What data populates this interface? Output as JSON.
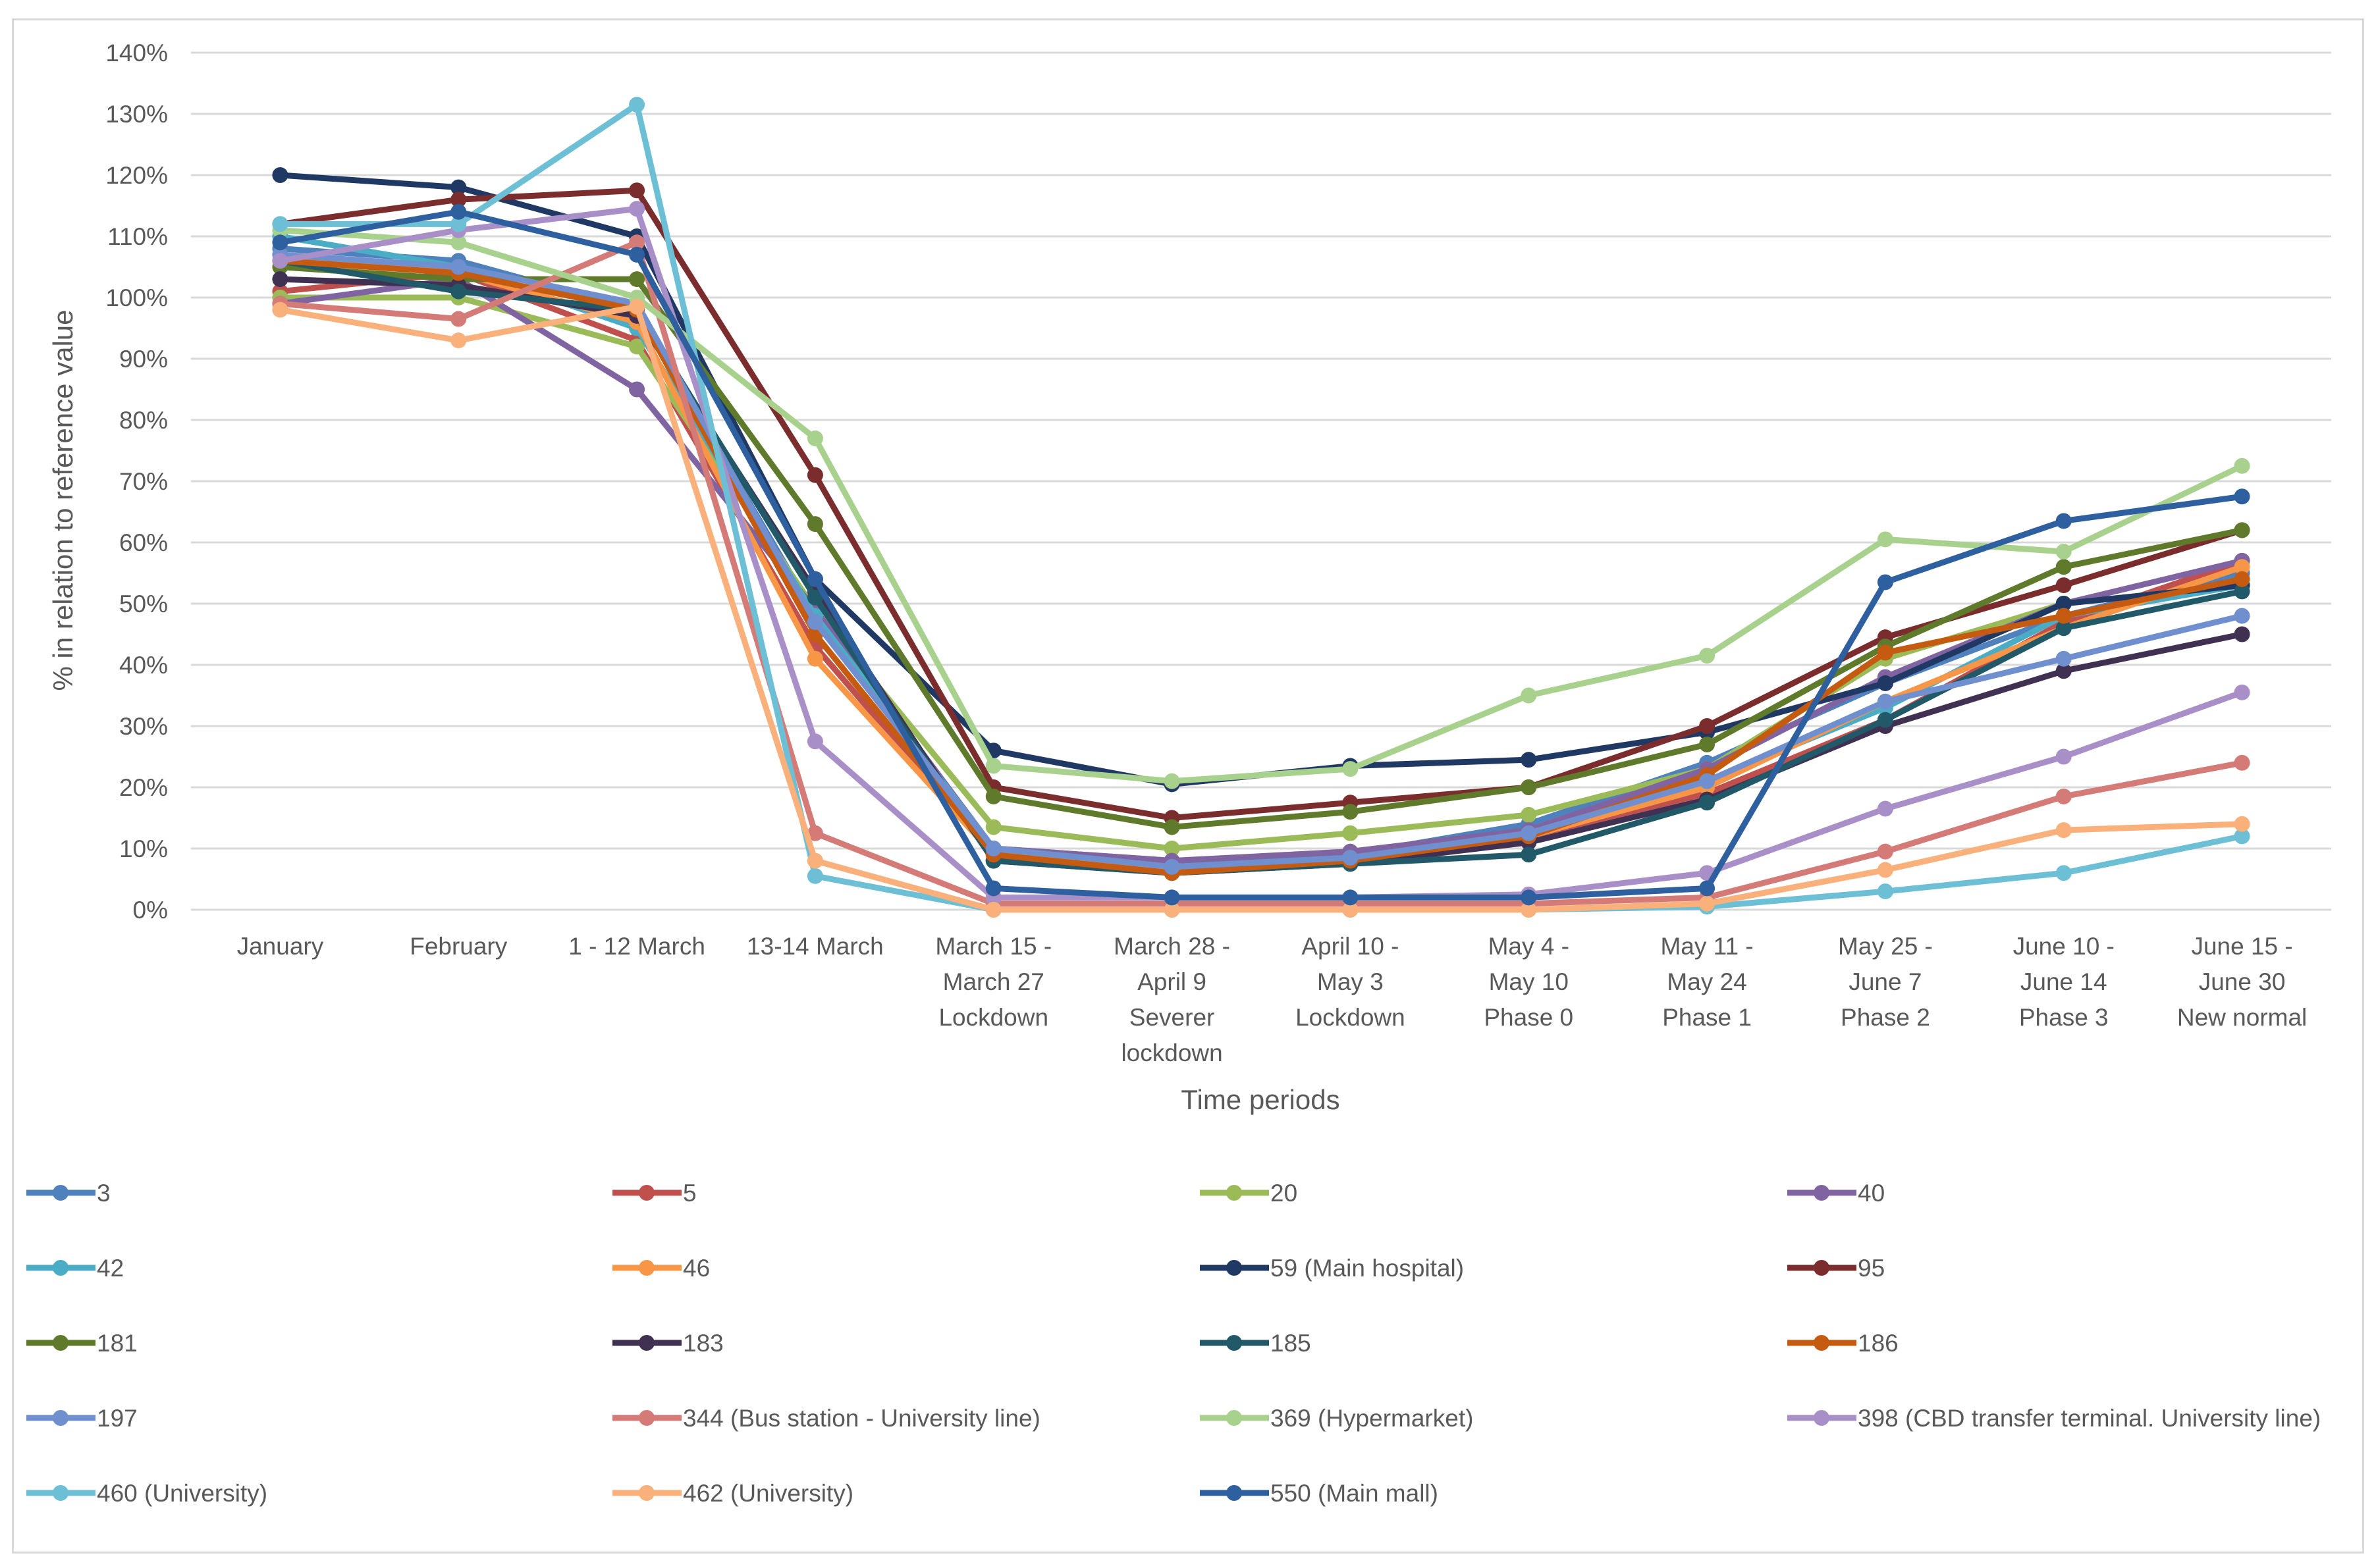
{
  "chart_data": {
    "type": "line",
    "title": "",
    "xlabel": "Time periods",
    "ylabel": "% in relation to reference value",
    "ylim": [
      0,
      140
    ],
    "yticks": [
      "0%",
      "10%",
      "20%",
      "30%",
      "40%",
      "50%",
      "60%",
      "70%",
      "80%",
      "90%",
      "100%",
      "110%",
      "120%",
      "130%",
      "140%"
    ],
    "grid": "horizontal",
    "legend": "bottom",
    "categories": [
      [
        "January"
      ],
      [
        "February"
      ],
      [
        "1 - 12 March"
      ],
      [
        "13-14 March"
      ],
      [
        "March 15 -",
        "March 27",
        "Lockdown"
      ],
      [
        "March 28 -",
        "April 9",
        "Severer",
        "lockdown"
      ],
      [
        "April 10 -",
        "May 3",
        "Lockdown"
      ],
      [
        "May 4 -",
        "May 10",
        "Phase 0"
      ],
      [
        "May 11 -",
        "May 24",
        "Phase 1"
      ],
      [
        "May 25 -",
        "June 7",
        "Phase 2"
      ],
      [
        "June 10 -",
        "June 14",
        "Phase 3"
      ],
      [
        "June 15 -",
        "June 30",
        "New normal"
      ]
    ],
    "series": [
      {
        "name": "3",
        "color": "#4f81bd",
        "values": [
          108,
          106,
          98,
          48,
          10,
          8,
          9,
          14,
          24,
          37,
          48,
          55
        ]
      },
      {
        "name": "5",
        "color": "#c0504d",
        "values": [
          101,
          104,
          93,
          43,
          9,
          7,
          8,
          12,
          19,
          31,
          47,
          57
        ]
      },
      {
        "name": "20",
        "color": "#9bbb59",
        "values": [
          100,
          100,
          92,
          49,
          13.5,
          10,
          12.5,
          15.5,
          23,
          41,
          50,
          53
        ]
      },
      {
        "name": "40",
        "color": "#8064a2",
        "values": [
          99,
          103,
          85,
          49,
          10,
          8,
          9.5,
          13,
          23,
          38,
          50,
          57
        ]
      },
      {
        "name": "42",
        "color": "#4bacc6",
        "values": [
          110,
          105,
          95,
          48,
          10,
          7,
          8,
          12,
          21,
          33,
          48,
          53
        ]
      },
      {
        "name": "46",
        "color": "#f79646",
        "values": [
          107,
          104,
          96,
          41,
          9,
          6.5,
          8,
          12,
          20,
          34,
          46,
          56
        ]
      },
      {
        "name": "59 (Main hospital)",
        "color": "#1f3864",
        "values": [
          120,
          118,
          110,
          54,
          26,
          20.5,
          23.5,
          24.5,
          29,
          37,
          50,
          53
        ]
      },
      {
        "name": "95",
        "color": "#7b2c2c",
        "values": [
          112,
          116,
          117.5,
          71,
          20,
          15,
          17.5,
          20,
          30,
          44.5,
          53,
          62
        ]
      },
      {
        "name": "181",
        "color": "#5e7a2a",
        "values": [
          105,
          103,
          103,
          63,
          18.5,
          13.5,
          16,
          20,
          27,
          43,
          56,
          62
        ]
      },
      {
        "name": "183",
        "color": "#403152",
        "values": [
          103,
          102,
          97,
          52,
          8,
          6,
          7.5,
          11,
          18,
          30,
          39,
          45
        ]
      },
      {
        "name": "185",
        "color": "#215968",
        "values": [
          106,
          101,
          98,
          51,
          8,
          6,
          7.5,
          9,
          17.5,
          31,
          46,
          52
        ]
      },
      {
        "name": "186",
        "color": "#c55a11",
        "values": [
          106,
          104,
          98,
          45,
          9,
          6,
          8,
          12,
          22,
          42,
          48,
          54
        ]
      },
      {
        "name": "197",
        "color": "#6f8fcf",
        "values": [
          107,
          105,
          99,
          47,
          10,
          7,
          8.5,
          12.5,
          21,
          34,
          41,
          48
        ]
      },
      {
        "name": "344 (Bus station - University line)",
        "color": "#d47a77",
        "values": [
          99,
          96.5,
          109,
          12.5,
          1,
          1,
          1,
          1,
          2,
          9.5,
          18.5,
          24
        ]
      },
      {
        "name": "369 (Hypermarket)",
        "color": "#a9d18e",
        "values": [
          111,
          109,
          100,
          77,
          23.5,
          21,
          23,
          35,
          41.5,
          60.5,
          58.5,
          72.5
        ]
      },
      {
        "name": "398 (CBD transfer terminal. University line)",
        "color": "#a98fc8",
        "values": [
          106,
          111,
          114.5,
          27.5,
          2,
          2,
          2,
          2.5,
          6,
          16.5,
          25,
          35.5
        ]
      },
      {
        "name": "460 (University)",
        "color": "#6cbfd4",
        "values": [
          112,
          112,
          131.5,
          5.5,
          0,
          0,
          0,
          0,
          0.5,
          3,
          6,
          12
        ]
      },
      {
        "name": "462 (University)",
        "color": "#f9b07a",
        "values": [
          98,
          93,
          98.5,
          8,
          0,
          0,
          0,
          0,
          1,
          6.5,
          13,
          14
        ]
      },
      {
        "name": "550 (Main mall)",
        "color": "#2e5f9e",
        "values": [
          109,
          114,
          107,
          54,
          3.5,
          2,
          2,
          2,
          3.5,
          53.5,
          63.5,
          67.5
        ]
      }
    ]
  }
}
